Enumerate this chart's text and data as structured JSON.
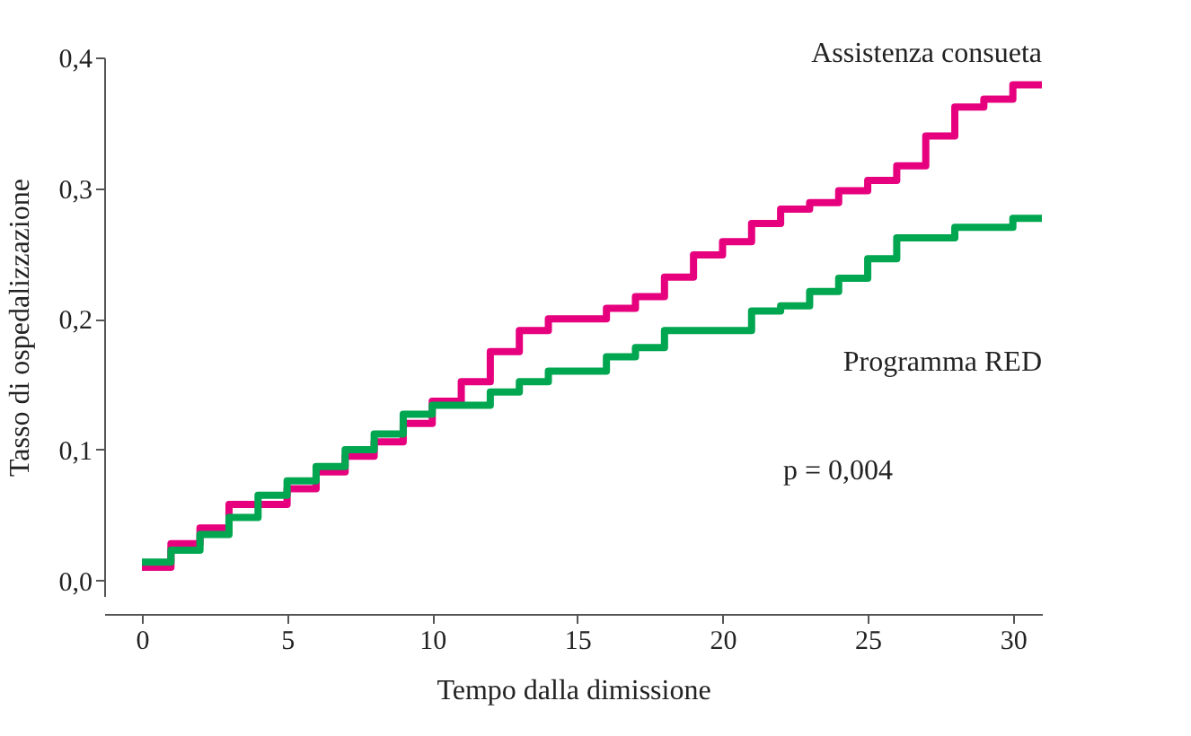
{
  "chart_data": {
    "type": "step",
    "xlabel": "Tempo dalla dimissione",
    "ylabel": "Tasso di ospedalizzazione",
    "xlim": [
      -1.3,
      31
    ],
    "ylim": [
      -0.012,
      0.4
    ],
    "xticks": [
      0,
      5,
      10,
      15,
      20,
      25,
      30
    ],
    "yticks": [
      {
        "value": 0,
        "label": "0,0"
      },
      {
        "value": 0.1,
        "label": "0,1"
      },
      {
        "value": 0.2,
        "label": "0,2"
      },
      {
        "value": 0.3,
        "label": "0,3"
      },
      {
        "value": 0.4,
        "label": "0,4"
      }
    ],
    "grid": false,
    "line_style": "solid",
    "marker": "none",
    "series": [
      {
        "name": "Assistenza consueta",
        "color": "#e6007e",
        "x": [
          0,
          1,
          2,
          3,
          5,
          6,
          7,
          8,
          9,
          10,
          11,
          12,
          13,
          14,
          16,
          17,
          18,
          19,
          20,
          21,
          22,
          23,
          24,
          25,
          26,
          27,
          28,
          29,
          30,
          31
        ],
        "values": [
          0.01,
          0.028,
          0.04,
          0.058,
          0.07,
          0.083,
          0.095,
          0.106,
          0.12,
          0.137,
          0.152,
          0.175,
          0.191,
          0.2,
          0.208,
          0.217,
          0.232,
          0.249,
          0.259,
          0.273,
          0.284,
          0.289,
          0.298,
          0.306,
          0.317,
          0.34,
          0.362,
          0.368,
          0.379,
          0.379
        ]
      },
      {
        "name": "Programma RED",
        "color": "#00a650",
        "x": [
          0,
          1,
          2,
          3,
          4,
          5,
          6,
          7,
          8,
          9,
          10,
          12,
          13,
          14,
          16,
          17,
          18,
          21,
          22,
          23,
          24,
          25,
          26,
          28,
          30,
          31
        ],
        "values": [
          0.014,
          0.023,
          0.035,
          0.048,
          0.065,
          0.076,
          0.087,
          0.1,
          0.112,
          0.127,
          0.134,
          0.144,
          0.152,
          0.16,
          0.171,
          0.178,
          0.191,
          0.206,
          0.21,
          0.221,
          0.231,
          0.246,
          0.262,
          0.27,
          0.277,
          0.277
        ]
      }
    ],
    "annotations": [
      "p = 0,004"
    ]
  }
}
